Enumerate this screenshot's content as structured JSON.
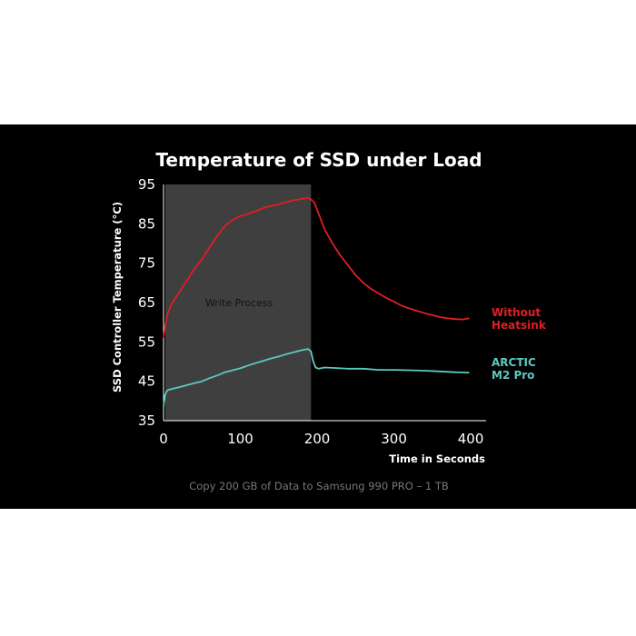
{
  "colors": {
    "background": "#000000",
    "shade": "#3f3f3f",
    "series_red": "#e01e25",
    "series_teal": "#5cc9c3"
  },
  "chart_data": {
    "type": "line",
    "title": "Temperature of SSD under Load",
    "xlabel": "Time in Seconds",
    "ylabel": "SSD Controller Temperature (°C)",
    "caption": "Copy 200 GB of Data to Samsung 990 PRO  – 1 TB",
    "xlim": [
      0,
      420
    ],
    "ylim": [
      35,
      95
    ],
    "xticks": [
      0,
      100,
      200,
      300,
      400
    ],
    "yticks": [
      35,
      45,
      55,
      65,
      75,
      85,
      95
    ],
    "shaded_region": {
      "x_start": 0,
      "x_end": 192,
      "label": "Write Process"
    },
    "series": [
      {
        "name": "Without Heatsink",
        "legend_lines": [
          "Without",
          "Heatsink"
        ],
        "color": "#e01e25",
        "x": [
          0,
          2,
          5,
          10,
          20,
          30,
          40,
          50,
          60,
          70,
          80,
          90,
          100,
          110,
          120,
          130,
          140,
          150,
          160,
          170,
          180,
          188,
          192,
          196,
          200,
          205,
          210,
          220,
          230,
          240,
          250,
          260,
          270,
          280,
          290,
          300,
          310,
          320,
          330,
          340,
          350,
          360,
          370,
          380,
          390,
          398
        ],
        "y": [
          56,
          59,
          62,
          64.5,
          67.5,
          70.5,
          73.5,
          76,
          79,
          82,
          84.5,
          86,
          87,
          87.5,
          88.2,
          89,
          89.5,
          90,
          90.5,
          91,
          91.3,
          91.6,
          91.2,
          90.5,
          88.5,
          86,
          83.5,
          80,
          77,
          74.5,
          72,
          70,
          68.5,
          67.3,
          66.2,
          65.2,
          64.2,
          63.5,
          62.9,
          62.3,
          61.8,
          61.3,
          61,
          60.8,
          60.7,
          61
        ]
      },
      {
        "name": "ARCTIC M2 Pro",
        "legend_lines": [
          "ARCTIC",
          "M2 Pro"
        ],
        "color": "#5cc9c3",
        "x": [
          0,
          2,
          4,
          6,
          10,
          20,
          30,
          40,
          50,
          60,
          70,
          80,
          90,
          100,
          110,
          120,
          130,
          140,
          150,
          160,
          170,
          180,
          188,
          192,
          195,
          198,
          202,
          210,
          220,
          240,
          260,
          280,
          300,
          320,
          340,
          360,
          380,
          398
        ],
        "y": [
          38.5,
          41.5,
          42.5,
          42.8,
          43,
          43.5,
          44,
          44.5,
          45,
          45.8,
          46.5,
          47.3,
          47.8,
          48.3,
          49,
          49.6,
          50.2,
          50.8,
          51.3,
          51.9,
          52.4,
          52.9,
          53.2,
          52.6,
          50,
          48.5,
          48.2,
          48.5,
          48.4,
          48.2,
          48.2,
          47.9,
          47.9,
          47.8,
          47.7,
          47.5,
          47.3,
          47.2
        ]
      }
    ]
  }
}
